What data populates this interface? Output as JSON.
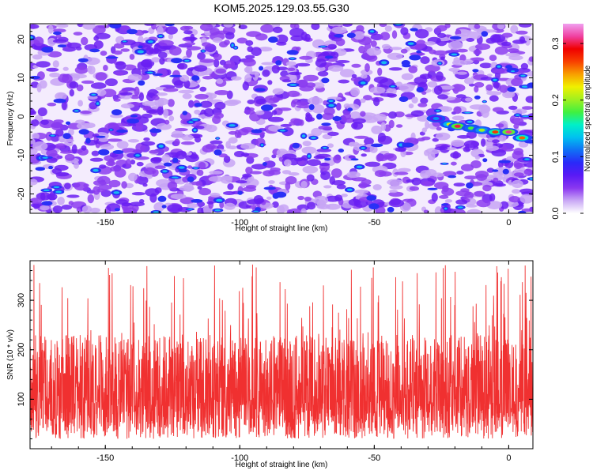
{
  "title": "KOM5.2025.129.03.55.G30",
  "chart_data": [
    {
      "type": "heatmap",
      "xlabel": "Height of straight line (km)",
      "ylabel": "Frequency (Hz)",
      "xlim": [
        -178,
        9
      ],
      "ylim": [
        -25,
        24
      ],
      "xticks": [
        -150,
        -100,
        -50,
        0
      ],
      "yticks": [
        -20,
        -10,
        0,
        10,
        20
      ],
      "colorbar": {
        "label": "Normalized spectral amplitude",
        "range": [
          0.0,
          0.335
        ],
        "ticks": [
          0.0,
          0.1,
          0.2,
          0.3
        ],
        "tick_labels": [
          "0.0",
          "0.1",
          "0.2",
          "0.3"
        ],
        "colors": [
          "#ffffff",
          "#c9a8f5",
          "#8a38f0",
          "#5a1af5",
          "#2a2af8",
          "#1070f5",
          "#00c0f0",
          "#00f0c8",
          "#40f040",
          "#a0f020",
          "#f0f000",
          "#f8a000",
          "#f84000",
          "#f00000",
          "#f040a0",
          "#f0a0f0"
        ]
      },
      "signal_track": [
        {
          "x": -27,
          "y": -0.5,
          "v": 0.12
        },
        {
          "x": -22,
          "y": -2.0,
          "v": 0.22
        },
        {
          "x": -19,
          "y": -2.5,
          "v": 0.3
        },
        {
          "x": -14,
          "y": -3.0,
          "v": 0.18
        },
        {
          "x": -10,
          "y": -3.5,
          "v": 0.2
        },
        {
          "x": -5,
          "y": -4.0,
          "v": 0.27
        },
        {
          "x": 0,
          "y": -4.0,
          "v": 0.31
        },
        {
          "x": 5,
          "y": -5.5,
          "v": 0.26
        }
      ]
    },
    {
      "type": "line",
      "xlabel": "Height of straight line (km)",
      "ylabel": "SNR (10 * v/v)",
      "xlim": [
        -178,
        9
      ],
      "ylim": [
        0,
        380
      ],
      "xticks": [
        -150,
        -100,
        -50,
        0
      ],
      "yticks": [
        100,
        200,
        300
      ],
      "color": "#f03030",
      "summary": {
        "baseline": 100,
        "typical_min": 20,
        "typical_max": 230,
        "max": 380
      }
    }
  ]
}
